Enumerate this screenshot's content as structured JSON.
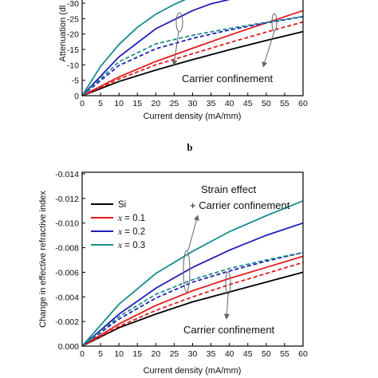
{
  "panel_b_label": "b",
  "chart_data": [
    {
      "type": "line",
      "panel": "a",
      "xlabel": "Current density (mA/mm)",
      "ylabel": "Attenuation (dB/cm)",
      "ylabel_visible": "Attenuation (dl",
      "xlim": [
        0,
        60
      ],
      "ylim": [
        0,
        -30
      ],
      "xticks": [
        "0",
        "5",
        "10",
        "15",
        "20",
        "25",
        "30",
        "35",
        "40",
        "45",
        "50",
        "55",
        "60"
      ],
      "yticks": [
        "0",
        "-5",
        "-10",
        "-15",
        "-20",
        "-25",
        "-30"
      ],
      "annotation": "Carrier confinement",
      "series": [
        {
          "color": "#000000",
          "dash": false,
          "x": [
            0,
            10,
            20,
            30,
            40,
            50,
            60
          ],
          "y": [
            0,
            -4.6,
            -8.3,
            -11.7,
            -14.9,
            -17.9,
            -20.8
          ]
        },
        {
          "color": "#e31a1c",
          "dash": false,
          "x": [
            0,
            10,
            20,
            30,
            40,
            50,
            60
          ],
          "y": [
            0,
            -6.1,
            -11.1,
            -15.4,
            -19.6,
            -23.6,
            -27.6
          ]
        },
        {
          "color": "#e31a1c",
          "dash": true,
          "x": [
            0,
            10,
            20,
            30,
            40,
            50,
            60
          ],
          "y": [
            0,
            -5.4,
            -10.0,
            -13.6,
            -17.2,
            -20.6,
            -23.9
          ]
        },
        {
          "color": "#1f1fb4",
          "dash": false,
          "x": [
            0,
            10,
            20,
            30,
            35,
            40
          ],
          "y": [
            0,
            -12.6,
            -21.7,
            -27.6,
            -29.8,
            -31.2
          ]
        },
        {
          "color": "#1f1fb4",
          "dash": true,
          "x": [
            0,
            10,
            20,
            30,
            40,
            50,
            60
          ],
          "y": [
            0,
            -9.8,
            -15.2,
            -18.6,
            -21.3,
            -23.6,
            -25.6
          ]
        },
        {
          "color": "#1a8c8c",
          "dash": false,
          "x": [
            0,
            5,
            10,
            15,
            20,
            25,
            28
          ],
          "y": [
            0,
            -9.5,
            -16.6,
            -22.2,
            -26.4,
            -29.6,
            -31.2
          ]
        },
        {
          "color": "#1a8c8c",
          "dash": true,
          "x": [
            0,
            10,
            20,
            30,
            40,
            50,
            60
          ],
          "y": [
            0,
            -11.0,
            -16.8,
            -19.6,
            -21.8,
            -23.8,
            -25.7
          ]
        }
      ]
    },
    {
      "type": "line",
      "panel": "b",
      "xlabel": "Current density (mA/mm)",
      "ylabel": "Change in effective refractive index",
      "xlim": [
        0,
        60
      ],
      "ylim": [
        0,
        -0.014
      ],
      "xticks": [
        "0",
        "5",
        "10",
        "15",
        "20",
        "25",
        "30",
        "35",
        "40",
        "45",
        "50",
        "55",
        "60"
      ],
      "yticks": [
        "0.000",
        "-0.002",
        "-0.004",
        "-0.006",
        "-0.008",
        "-0.010",
        "-0.012",
        "-0.014"
      ],
      "annotation_top_1": "Strain effect",
      "annotation_top_2": "+ Carrier confinement",
      "annotation_bottom": "Carrier confinement",
      "legend": [
        {
          "label": "Si",
          "color": "#000000"
        },
        {
          "label_prefix": "x",
          "label_suffix": " = 0.1",
          "color": "#e31a1c"
        },
        {
          "label_prefix": "x",
          "label_suffix": " = 0.2",
          "color": "#1f1fb4"
        },
        {
          "label_prefix": "x",
          "label_suffix": " = 0.3",
          "color": "#1a8c8c"
        }
      ],
      "series": [
        {
          "color": "#000000",
          "dash": false,
          "x": [
            0,
            10,
            20,
            30,
            40,
            50,
            60
          ],
          "y": [
            0,
            -0.0015,
            -0.0026,
            -0.0036,
            -0.0044,
            -0.0052,
            -0.006
          ]
        },
        {
          "color": "#e31a1c",
          "dash": false,
          "x": [
            0,
            10,
            20,
            30,
            40,
            50,
            60
          ],
          "y": [
            0,
            -0.0018,
            -0.0033,
            -0.0045,
            -0.0055,
            -0.0064,
            -0.0073
          ]
        },
        {
          "color": "#e31a1c",
          "dash": true,
          "x": [
            0,
            10,
            20,
            30,
            40,
            50,
            60
          ],
          "y": [
            0,
            -0.0016,
            -0.0029,
            -0.004,
            -0.005,
            -0.0059,
            -0.0068
          ]
        },
        {
          "color": "#1f1fb4",
          "dash": false,
          "x": [
            0,
            10,
            20,
            30,
            40,
            50,
            60
          ],
          "y": [
            0,
            -0.0026,
            -0.0047,
            -0.0064,
            -0.0078,
            -0.009,
            -0.01
          ]
        },
        {
          "color": "#1f1fb4",
          "dash": true,
          "x": [
            0,
            10,
            20,
            30,
            40,
            50,
            60
          ],
          "y": [
            0,
            -0.0022,
            -0.0039,
            -0.0052,
            -0.0061,
            -0.0069,
            -0.0076
          ]
        },
        {
          "color": "#1a8c8c",
          "dash": false,
          "x": [
            0,
            10,
            20,
            30,
            40,
            50,
            60
          ],
          "y": [
            0,
            -0.0034,
            -0.0059,
            -0.0077,
            -0.0093,
            -0.0106,
            -0.0118
          ]
        },
        {
          "color": "#1a8c8c",
          "dash": true,
          "x": [
            0,
            10,
            20,
            30,
            40,
            50,
            60
          ],
          "y": [
            0,
            -0.0024,
            -0.0042,
            -0.0054,
            -0.0063,
            -0.007,
            -0.0076
          ]
        }
      ]
    }
  ]
}
